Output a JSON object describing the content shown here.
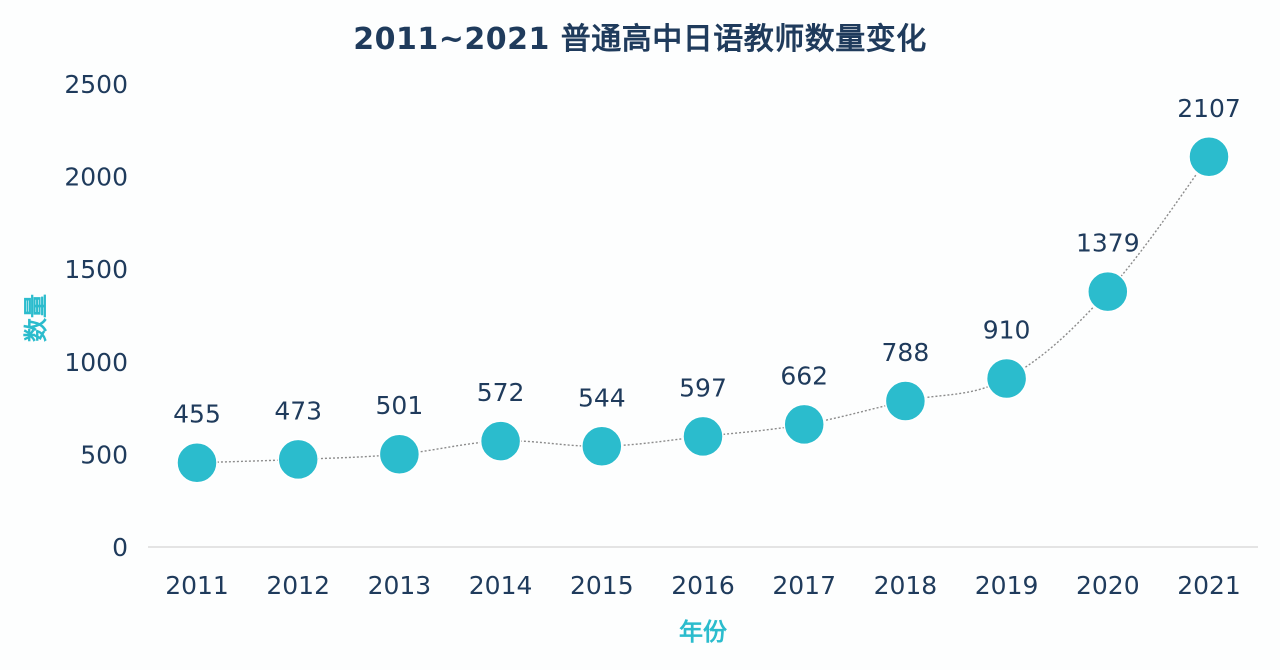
{
  "chart_data": {
    "type": "line",
    "title": "2011~2021 普通高中日语教师数量变化",
    "xlabel": "年份",
    "ylabel": "数量",
    "categories": [
      "2011",
      "2012",
      "2013",
      "2014",
      "2015",
      "2016",
      "2017",
      "2018",
      "2019",
      "2020",
      "2021"
    ],
    "series": [
      {
        "values": [
          455,
          473,
          501,
          572,
          544,
          597,
          662,
          788,
          910,
          1379,
          2107
        ]
      }
    ],
    "yticks": [
      "0",
      "500",
      "1000",
      "1500",
      "2000",
      "2500"
    ],
    "ylim": [
      0,
      2500
    ],
    "grid": false,
    "legend": "none",
    "colors": {
      "marker": "#2bbccd",
      "line": "#8c8c8c",
      "text": "#1f3b5c",
      "axis_title": "#2bbccd",
      "baseline": "#dcdcdc"
    }
  }
}
